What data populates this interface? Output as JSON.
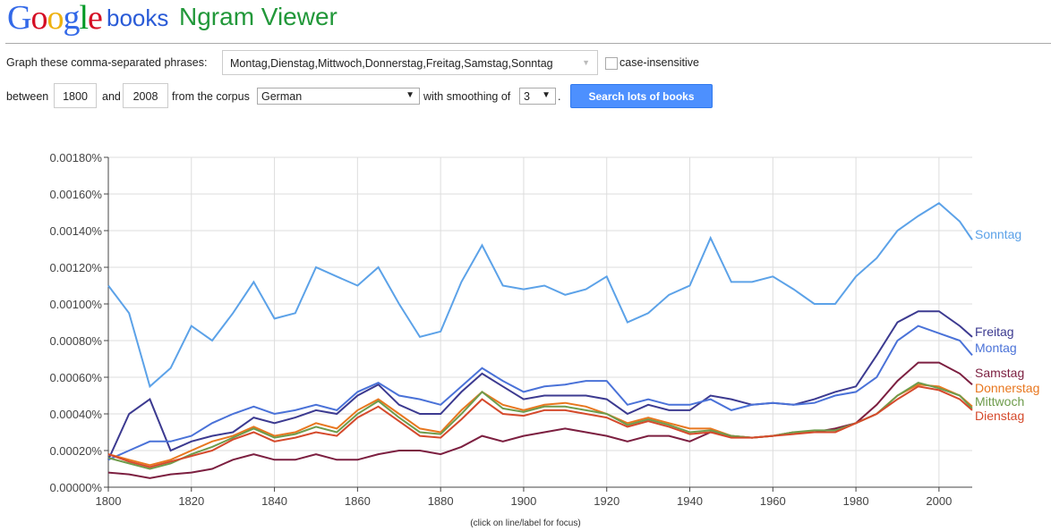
{
  "header": {
    "logo": "Google",
    "books": "books",
    "title": "Ngram Viewer"
  },
  "form": {
    "phrases_label": "Graph these comma-separated phrases:",
    "phrases_value": "Montag,Dienstag,Mittwoch,Donnerstag,Freitag,Samstag,Sonntag",
    "case_label": "case-insensitive",
    "case_checked": false,
    "between_label": "between",
    "start_year": "1800",
    "and_label": "and",
    "end_year": "2008",
    "corpus_label": "from the corpus",
    "corpus_value": "German",
    "smoothing_label": "with smoothing of",
    "smoothing_value": "3",
    "period": ".",
    "search_button": "Search lots of books"
  },
  "hint": "(click on line/label for focus)",
  "chart_data": {
    "type": "line",
    "xlabel": "",
    "ylabel": "",
    "xlim": [
      1800,
      2008
    ],
    "ylim": [
      0,
      0.0018
    ],
    "y_ticks": [
      "0.00000%",
      "0.00020%",
      "0.00040%",
      "0.00060%",
      "0.00080%",
      "0.00100%",
      "0.00120%",
      "0.00140%",
      "0.00160%",
      "0.00180%"
    ],
    "x_ticks": [
      "1800",
      "1820",
      "1840",
      "1860",
      "1880",
      "1900",
      "1920",
      "1940",
      "1960",
      "1980",
      "2000"
    ],
    "grid": true,
    "legend": "right-end labels",
    "x": [
      1800,
      1805,
      1810,
      1815,
      1820,
      1825,
      1830,
      1835,
      1840,
      1845,
      1850,
      1855,
      1860,
      1865,
      1870,
      1875,
      1880,
      1885,
      1890,
      1895,
      1900,
      1905,
      1910,
      1915,
      1920,
      1925,
      1930,
      1935,
      1940,
      1945,
      1950,
      1955,
      1960,
      1965,
      1970,
      1975,
      1980,
      1985,
      1990,
      1995,
      2000,
      2005,
      2008
    ],
    "series": [
      {
        "name": "Sonntag",
        "color": "#5ca2e8",
        "values": [
          0.0011,
          0.00095,
          0.00055,
          0.00065,
          0.00088,
          0.0008,
          0.00095,
          0.00112,
          0.00092,
          0.00095,
          0.0012,
          0.00115,
          0.0011,
          0.0012,
          0.001,
          0.00082,
          0.00085,
          0.00112,
          0.00132,
          0.0011,
          0.00108,
          0.0011,
          0.00105,
          0.00108,
          0.00115,
          0.0009,
          0.00095,
          0.00105,
          0.0011,
          0.00136,
          0.00112,
          0.00112,
          0.00115,
          0.00108,
          0.001,
          0.001,
          0.00115,
          0.00125,
          0.0014,
          0.00148,
          0.00155,
          0.00145,
          0.00135
        ]
      },
      {
        "name": "Freitag",
        "color": "#3c3a90",
        "values": [
          0.00015,
          0.0004,
          0.00048,
          0.0002,
          0.00025,
          0.00028,
          0.0003,
          0.00038,
          0.00035,
          0.00038,
          0.00042,
          0.0004,
          0.0005,
          0.00056,
          0.00045,
          0.0004,
          0.0004,
          0.00052,
          0.00062,
          0.00055,
          0.00048,
          0.0005,
          0.0005,
          0.0005,
          0.00048,
          0.0004,
          0.00045,
          0.00042,
          0.00042,
          0.0005,
          0.00048,
          0.00045,
          0.00046,
          0.00045,
          0.00048,
          0.00052,
          0.00055,
          0.00072,
          0.0009,
          0.00096,
          0.00096,
          0.00088,
          0.00082
        ]
      },
      {
        "name": "Montag",
        "color": "#4a72d8",
        "values": [
          0.00015,
          0.0002,
          0.00025,
          0.00025,
          0.00028,
          0.00035,
          0.0004,
          0.00044,
          0.0004,
          0.00042,
          0.00045,
          0.00042,
          0.00052,
          0.00057,
          0.0005,
          0.00048,
          0.00045,
          0.00055,
          0.00065,
          0.00058,
          0.00052,
          0.00055,
          0.00056,
          0.00058,
          0.00058,
          0.00045,
          0.00048,
          0.00045,
          0.00045,
          0.00048,
          0.00042,
          0.00045,
          0.00046,
          0.00045,
          0.00046,
          0.0005,
          0.00052,
          0.0006,
          0.0008,
          0.00088,
          0.00084,
          0.0008,
          0.00072
        ]
      },
      {
        "name": "Samstag",
        "color": "#7c1f40",
        "values": [
          8e-05,
          7e-05,
          5e-05,
          7e-05,
          8e-05,
          0.0001,
          0.00015,
          0.00018,
          0.00015,
          0.00015,
          0.00018,
          0.00015,
          0.00015,
          0.00018,
          0.0002,
          0.0002,
          0.00018,
          0.00022,
          0.00028,
          0.00025,
          0.00028,
          0.0003,
          0.00032,
          0.0003,
          0.00028,
          0.00025,
          0.00028,
          0.00028,
          0.00025,
          0.0003,
          0.00028,
          0.00027,
          0.00028,
          0.0003,
          0.0003,
          0.00032,
          0.00035,
          0.00045,
          0.00058,
          0.00068,
          0.00068,
          0.00062,
          0.00056
        ]
      },
      {
        "name": "Donnerstag",
        "color": "#e8771f",
        "values": [
          0.00018,
          0.00015,
          0.00012,
          0.00015,
          0.0002,
          0.00025,
          0.00028,
          0.00033,
          0.00028,
          0.0003,
          0.00035,
          0.00032,
          0.00042,
          0.00048,
          0.0004,
          0.00032,
          0.0003,
          0.00042,
          0.00052,
          0.00045,
          0.00042,
          0.00045,
          0.00046,
          0.00044,
          0.0004,
          0.00035,
          0.00038,
          0.00035,
          0.00032,
          0.00032,
          0.00028,
          0.00027,
          0.00028,
          0.0003,
          0.0003,
          0.0003,
          0.00035,
          0.0004,
          0.0005,
          0.00056,
          0.00055,
          0.0005,
          0.00044
        ]
      },
      {
        "name": "Mittwoch",
        "color": "#6e9c4c",
        "values": [
          0.00016,
          0.00013,
          0.0001,
          0.00013,
          0.00018,
          0.00022,
          0.00027,
          0.00032,
          0.00027,
          0.00029,
          0.00033,
          0.0003,
          0.0004,
          0.00047,
          0.00038,
          0.0003,
          0.00029,
          0.0004,
          0.00052,
          0.00043,
          0.00041,
          0.00044,
          0.00044,
          0.00042,
          0.0004,
          0.00034,
          0.00037,
          0.00034,
          0.0003,
          0.00031,
          0.00028,
          0.00027,
          0.00028,
          0.0003,
          0.00031,
          0.00031,
          0.00035,
          0.0004,
          0.0005,
          0.00057,
          0.00054,
          0.0005,
          0.00043
        ]
      },
      {
        "name": "Dienstag",
        "color": "#d54a2c",
        "values": [
          0.00018,
          0.00014,
          0.00011,
          0.00014,
          0.00017,
          0.0002,
          0.00026,
          0.0003,
          0.00025,
          0.00027,
          0.0003,
          0.00028,
          0.00038,
          0.00044,
          0.00036,
          0.00028,
          0.00027,
          0.00037,
          0.00048,
          0.0004,
          0.00039,
          0.00042,
          0.00042,
          0.0004,
          0.00038,
          0.00033,
          0.00036,
          0.00033,
          0.00029,
          0.0003,
          0.00027,
          0.00027,
          0.00028,
          0.00029,
          0.0003,
          0.0003,
          0.00035,
          0.0004,
          0.00048,
          0.00055,
          0.00053,
          0.00048,
          0.00042
        ]
      }
    ]
  }
}
